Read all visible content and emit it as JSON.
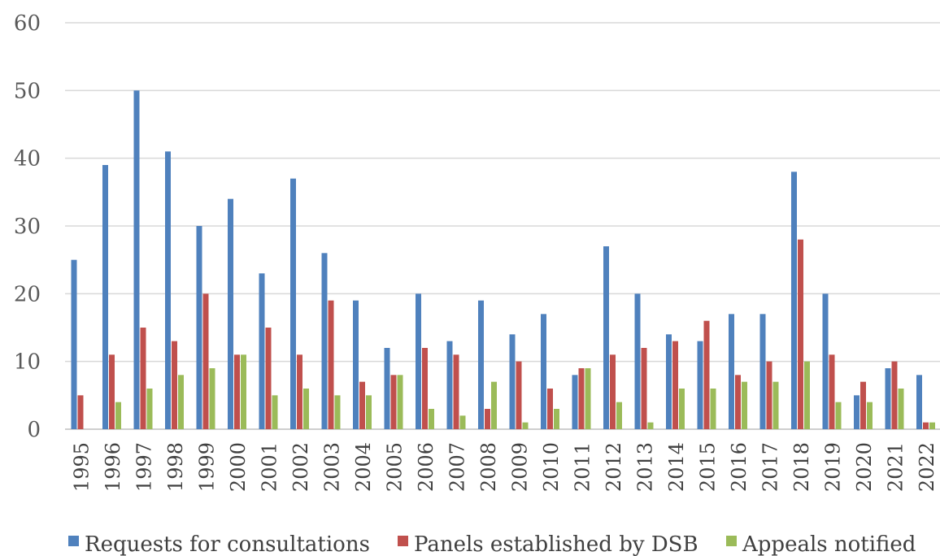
{
  "chart_data": {
    "type": "bar",
    "title": "",
    "xlabel": "",
    "ylabel": "",
    "ylim": [
      0,
      60
    ],
    "yticks": [
      0,
      10,
      20,
      30,
      40,
      50,
      60
    ],
    "grid": true,
    "legend_position": "bottom",
    "categories": [
      "1995",
      "1996",
      "1997",
      "1998",
      "1999",
      "2000",
      "2001",
      "2002",
      "2003",
      "2004",
      "2005",
      "2006",
      "2007",
      "2008",
      "2009",
      "2010",
      "2011",
      "2012",
      "2013",
      "2014",
      "2015",
      "2016",
      "2017",
      "2018",
      "2019",
      "2020",
      "2021",
      "2022"
    ],
    "series": [
      {
        "name": "Requests for consultations",
        "color": "#4f81bd",
        "values": [
          25,
          39,
          50,
          41,
          30,
          34,
          23,
          37,
          26,
          19,
          12,
          20,
          13,
          19,
          14,
          17,
          8,
          27,
          20,
          14,
          13,
          17,
          17,
          38,
          20,
          5,
          9,
          8
        ]
      },
      {
        "name": "Panels established by DSB",
        "color": "#c0504d",
        "values": [
          5,
          11,
          15,
          13,
          20,
          11,
          15,
          11,
          19,
          7,
          8,
          12,
          11,
          3,
          10,
          6,
          9,
          11,
          12,
          13,
          16,
          8,
          10,
          28,
          11,
          7,
          10,
          1
        ]
      },
      {
        "name": "Appeals notified",
        "color": "#9bbb59",
        "values": [
          0,
          4,
          6,
          8,
          9,
          11,
          5,
          6,
          5,
          5,
          8,
          3,
          2,
          7,
          1,
          3,
          9,
          4,
          1,
          6,
          6,
          7,
          7,
          10,
          4,
          4,
          6,
          1
        ]
      }
    ]
  }
}
